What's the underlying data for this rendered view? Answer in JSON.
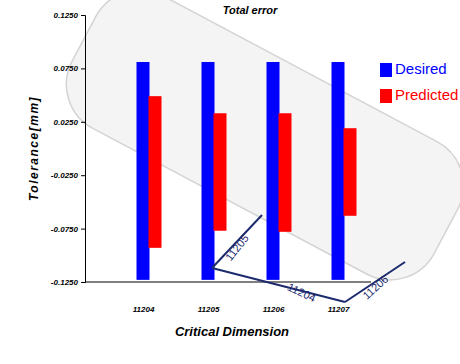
{
  "chart_data": {
    "type": "floating_bar",
    "title": "Total error",
    "x_label": "Critical Dimension",
    "y_label": "Tolerance[mm]",
    "categories": [
      "11204",
      "11205",
      "11206",
      "11207"
    ],
    "series": [
      {
        "name": "Desired",
        "color": "#0000ff",
        "values": [
          [
            -0.123,
            0.081
          ],
          [
            -0.123,
            0.081
          ],
          [
            -0.123,
            0.081
          ],
          [
            -0.123,
            0.081
          ]
        ]
      },
      {
        "name": "Predicted",
        "color": "#ff0000",
        "values": [
          [
            -0.093,
            0.049
          ],
          [
            -0.077,
            0.033
          ],
          [
            -0.078,
            0.033
          ],
          [
            -0.063,
            0.019
          ]
        ]
      }
    ],
    "ylim": [
      -0.125,
      0.125
    ],
    "yticks": [
      {
        "value": -0.125,
        "label": "-0.1250"
      },
      {
        "value": -0.075,
        "label": "-0.0750"
      },
      {
        "value": -0.025,
        "label": "-0.0250"
      },
      {
        "value": 0.025,
        "label": "0.0250"
      },
      {
        "value": 0.075,
        "label": "0.0750"
      },
      {
        "value": 0.125,
        "label": "0.1250"
      }
    ],
    "legend": "upper right",
    "grid": false,
    "annotations": [
      {
        "text": "11205"
      },
      {
        "text": "11204"
      },
      {
        "text": "11206"
      }
    ]
  }
}
